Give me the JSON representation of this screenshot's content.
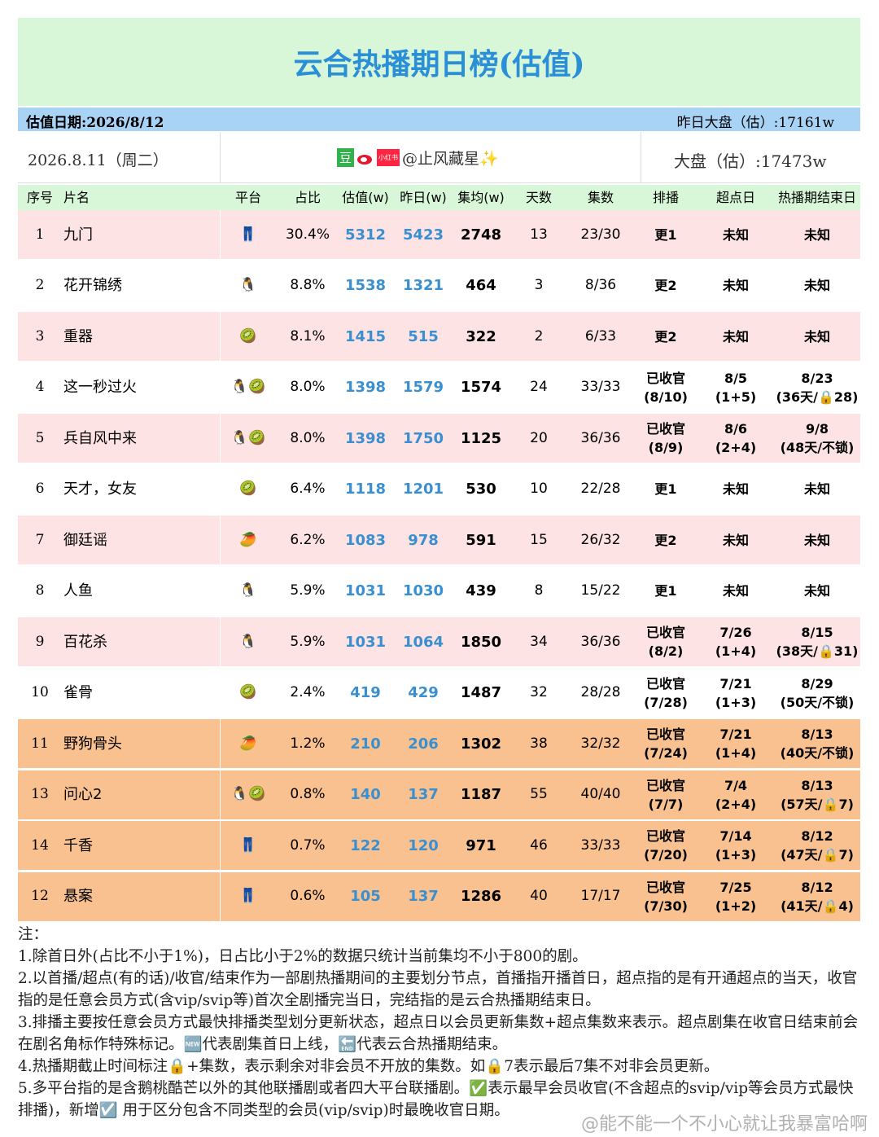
{
  "header": {
    "title": "云合热播期日榜(估值)",
    "date_label": "估值日期:2026/8/12",
    "yesterday_market": "昨日大盘（估）:17161w",
    "day": "2026.8.11（周二）",
    "platform_icons": [
      "豆",
      "小红书"
    ],
    "author": "@止风藏星✨",
    "market": "大盘（估）:17473w"
  },
  "table": {
    "columns": [
      "序号",
      "片名",
      "平台",
      "占比",
      "估值(w)",
      "昨日(w)",
      "集均(w)",
      "天数",
      "集数",
      "排播",
      "超点日",
      "热播期结束日"
    ],
    "rows": [
      {
        "color": "#fde3e3",
        "cells": [
          1,
          "九门",
          "👖",
          "30.4%",
          5312,
          5423,
          2748,
          13,
          "23/30",
          "更1",
          "未知",
          "未知"
        ]
      },
      {
        "color": "#ffffff",
        "cells": [
          2,
          "花开锦绣",
          "🐧",
          "8.8%",
          1538,
          1321,
          464,
          3,
          "8/36",
          "更2",
          "未知",
          "未知"
        ]
      },
      {
        "color": "#fde3e3",
        "cells": [
          3,
          "重器",
          "🥝",
          "8.1%",
          1415,
          515,
          322,
          2,
          "6/33",
          "更2",
          "未知",
          "未知"
        ]
      },
      {
        "color": "#ffffff",
        "cells": [
          4,
          "这一秒过火",
          "🐧🥝",
          "8.0%",
          1398,
          1579,
          1574,
          24,
          "33/33",
          "已收官\n(8/10)",
          "8/5\n(1+5)",
          "8/23\n(36天/🔒28)"
        ]
      },
      {
        "color": "#fde3e3",
        "cells": [
          5,
          "兵自风中来",
          "🐧🥝",
          "8.0%",
          1398,
          1750,
          1125,
          20,
          "36/36",
          "已收官\n(8/9)",
          "8/6\n(2+4)",
          "9/8\n(48天/不锁)"
        ]
      },
      {
        "color": "#ffffff",
        "cells": [
          6,
          "天才，女友",
          "🥝",
          "6.4%",
          1118,
          1201,
          530,
          10,
          "22/28",
          "更1",
          "未知",
          "未知"
        ]
      },
      {
        "color": "#fde3e3",
        "cells": [
          7,
          "御廷谣",
          "🥭",
          "6.2%",
          1083,
          978,
          591,
          15,
          "26/32",
          "更2",
          "未知",
          "未知"
        ]
      },
      {
        "color": "#ffffff",
        "cells": [
          8,
          "人鱼",
          "🐧",
          "5.9%",
          1031,
          1030,
          439,
          8,
          "15/22",
          "更1",
          "未知",
          "未知"
        ]
      },
      {
        "color": "#fde3e3",
        "cells": [
          9,
          "百花杀",
          "🐧",
          "5.9%",
          1031,
          1064,
          1850,
          34,
          "36/36",
          "已收官\n(8/2)",
          "7/26\n(1+4)",
          "8/15\n(38天/🔒31)"
        ]
      },
      {
        "color": "#ffffff",
        "cells": [
          10,
          "雀骨",
          "🥝",
          "2.4%",
          419,
          429,
          1487,
          32,
          "28/28",
          "已收官\n(7/28)",
          "7/21\n(1+3)",
          "8/29\n(50天/不锁)"
        ]
      },
      {
        "color": "#f9c18f",
        "cells": [
          11,
          "野狗骨头",
          "🥭",
          "1.2%",
          210,
          206,
          1302,
          38,
          "32/32",
          "已收官\n(7/24)",
          "7/21\n(1+4)",
          "8/13\n(40天/不锁)"
        ]
      },
      {
        "color": "#f9c18f",
        "cells": [
          13,
          "问心2",
          "🐧🥝",
          "0.8%",
          140,
          137,
          1187,
          55,
          "40/40",
          "已收官\n(7/7)",
          "7/4\n(2+4)",
          "8/13\n(57天/🔒7)"
        ]
      },
      {
        "color": "#f9c18f",
        "cells": [
          14,
          "千香",
          "👖",
          "0.7%",
          122,
          120,
          971,
          46,
          "33/33",
          "已收官\n(7/20)",
          "7/14\n(1+3)",
          "8/12\n(47天/🔒7)"
        ]
      },
      {
        "color": "#f9c18f",
        "cells": [
          12,
          "悬案",
          "👖",
          "0.6%",
          105,
          137,
          1286,
          40,
          "17/17",
          "已收官\n(7/30)",
          "7/25\n(1+2)",
          "8/12\n(41天/🔒4)"
        ]
      }
    ]
  },
  "notes": [
    "注：",
    "1.除首日外(占比不小于1%)，日占比小于2%的数据只统计当前集均不小于800的剧。",
    "2.以首播/超点(有的话)/收官/结束作为一部剧热播期间的主要划分节点，首播指开播首日，超点指的是有开通超点的当天，收官指的是任意会员方式(含vip/svip等)首次全剧播完当日，完结指的是云合热播期结束日。",
    "3.排播主要按任意会员方式最快排播类型划分更新状态，超点日以会员更新集数+超点集数来表示。超点剧集在收官日结束前会在剧名角标作特殊标记。🆕代表剧集首日上线，🔚代表云合热播期结束。",
    "4.热播期截止时间标注🔒+集数，表示剩余对非会员不开放的集数。如🔒7表示最后7集不对非会员更新。",
    "5.多平台指的是含鹅桃酷芒以外的其他联播剧或者四大平台联播剧。✅表示最早会员收官(不含超点的svip/vip等会员方式最快排播)，新增☑️ 用于区分包含不同类型的会员(vip/svip)时最晚收官日期。"
  ],
  "watermark": "@能不能一个不小心就让我暴富哈啊"
}
